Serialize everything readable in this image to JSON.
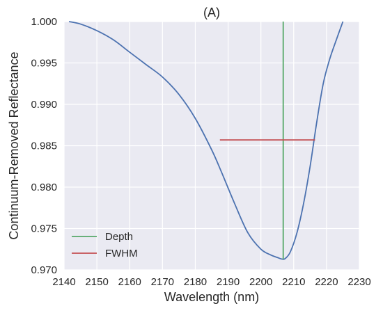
{
  "chart_data": {
    "type": "line",
    "title": "(A)",
    "xlabel": "Wavelength (nm)",
    "ylabel": "Continuum-Removed Reflectance",
    "xlim": [
      2140,
      2230
    ],
    "ylim": [
      0.97,
      1.0
    ],
    "x_ticks": [
      2140,
      2150,
      2160,
      2170,
      2180,
      2190,
      2200,
      2210,
      2220,
      2230
    ],
    "x_tick_labels": [
      "2140",
      "2150",
      "2160",
      "2170",
      "2180",
      "2190",
      "2200",
      "2210",
      "2220",
      "2230"
    ],
    "y_ticks": [
      0.97,
      0.975,
      0.98,
      0.985,
      0.99,
      0.995,
      1.0
    ],
    "y_tick_labels": [
      "0.970",
      "0.975",
      "0.980",
      "0.985",
      "0.990",
      "0.995",
      "1.000"
    ],
    "grid": true,
    "legend_position": "bottom-left",
    "background_color": "#eaeaf2",
    "grid_color": "#ffffff",
    "series": [
      {
        "type": "curve",
        "color": "#4c72b0",
        "x": [
          2141.5,
          2145,
          2150,
          2155,
          2160,
          2165,
          2170,
          2175,
          2180,
          2185,
          2188,
          2192,
          2196,
          2200,
          2203,
          2205,
          2206.5,
          2207.5,
          2209,
          2211,
          2213,
          2215,
          2217,
          2219,
          2221,
          2223,
          2225
        ],
        "y": [
          1.0,
          0.9997,
          0.9989,
          0.9978,
          0.9963,
          0.9948,
          0.9933,
          0.9912,
          0.9883,
          0.9845,
          0.9818,
          0.978,
          0.9745,
          0.9725,
          0.9718,
          0.9715,
          0.9713,
          0.9714,
          0.9722,
          0.9745,
          0.978,
          0.9825,
          0.9878,
          0.9925,
          0.9955,
          0.9978,
          1.0
        ]
      },
      {
        "name": "Depth",
        "type": "vline",
        "color": "#55a868",
        "x": 2206.8,
        "y_range": [
          0.9713,
          1.0
        ]
      },
      {
        "name": "FWHM",
        "type": "hline",
        "color": "#c44e52",
        "y": 0.9857,
        "x_range": [
          2187.5,
          2216.5
        ]
      }
    ]
  }
}
